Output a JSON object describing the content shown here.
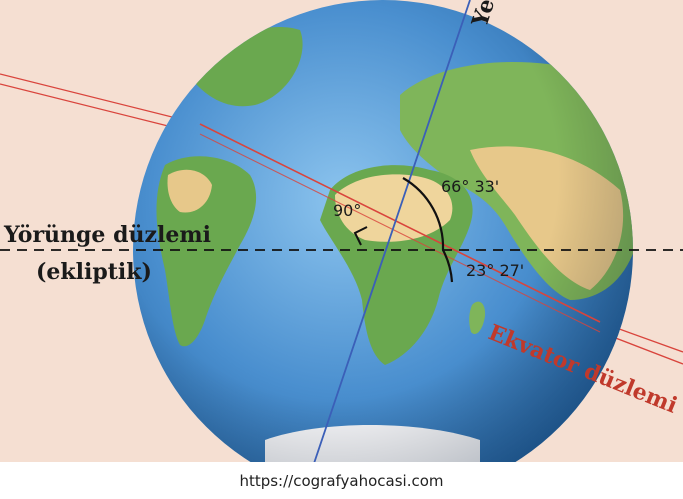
{
  "labels": {
    "axis": "Ye",
    "orbital_plane_line1": "Yörünge düzlemi",
    "orbital_plane_line2": "(ekliptik)",
    "right_angle": "90°",
    "axis_angle": "66° 33'",
    "tilt_angle": "23° 27'",
    "equator_plane": "Ekvator düzlemi"
  },
  "footer": {
    "url": "https://cografyahocasi.com"
  },
  "colors": {
    "background": "#f5dfd2",
    "ocean_light": "#7fb8e6",
    "ocean_dark": "#1f5f9e",
    "land_green": "#6aa84f",
    "land_tan": "#e9cf8e",
    "equator_line": "#d9443c",
    "axis_line": "#3b5fb8",
    "text_dark": "#1a1a1a",
    "text_red": "#c0392b"
  }
}
